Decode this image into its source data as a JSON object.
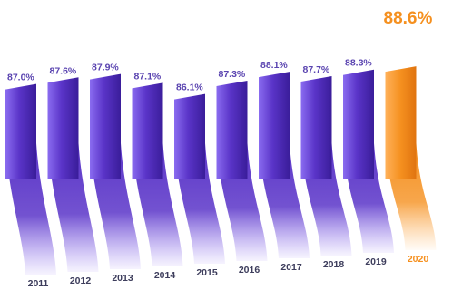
{
  "chart_data": {
    "type": "bar",
    "categories": [
      "2011",
      "2012",
      "2013",
      "2014",
      "2015",
      "2016",
      "2017",
      "2018",
      "2019",
      "2020"
    ],
    "values": [
      87.0,
      87.6,
      87.9,
      87.1,
      86.1,
      87.3,
      88.1,
      87.7,
      88.3,
      88.6
    ],
    "value_labels": [
      "87.0%",
      "87.6%",
      "87.9%",
      "87.1%",
      "86.1%",
      "87.3%",
      "88.1%",
      "87.7%",
      "88.3%",
      "88.6%"
    ],
    "highlight_category": "2020",
    "title": "",
    "xlabel": "",
    "ylabel": "",
    "ylim": [
      80,
      90
    ],
    "grid": false,
    "legend": "none",
    "colors": {
      "bar": "#5a34c8",
      "bar_light": "#8a6cf0",
      "bar_dark": "#3a1d9a",
      "highlight": "#f5901f",
      "highlight_light": "#ffb15a",
      "label": "#5a44b0",
      "highlight_label": "#f5901f",
      "year_label": "#3d3d5c"
    }
  }
}
